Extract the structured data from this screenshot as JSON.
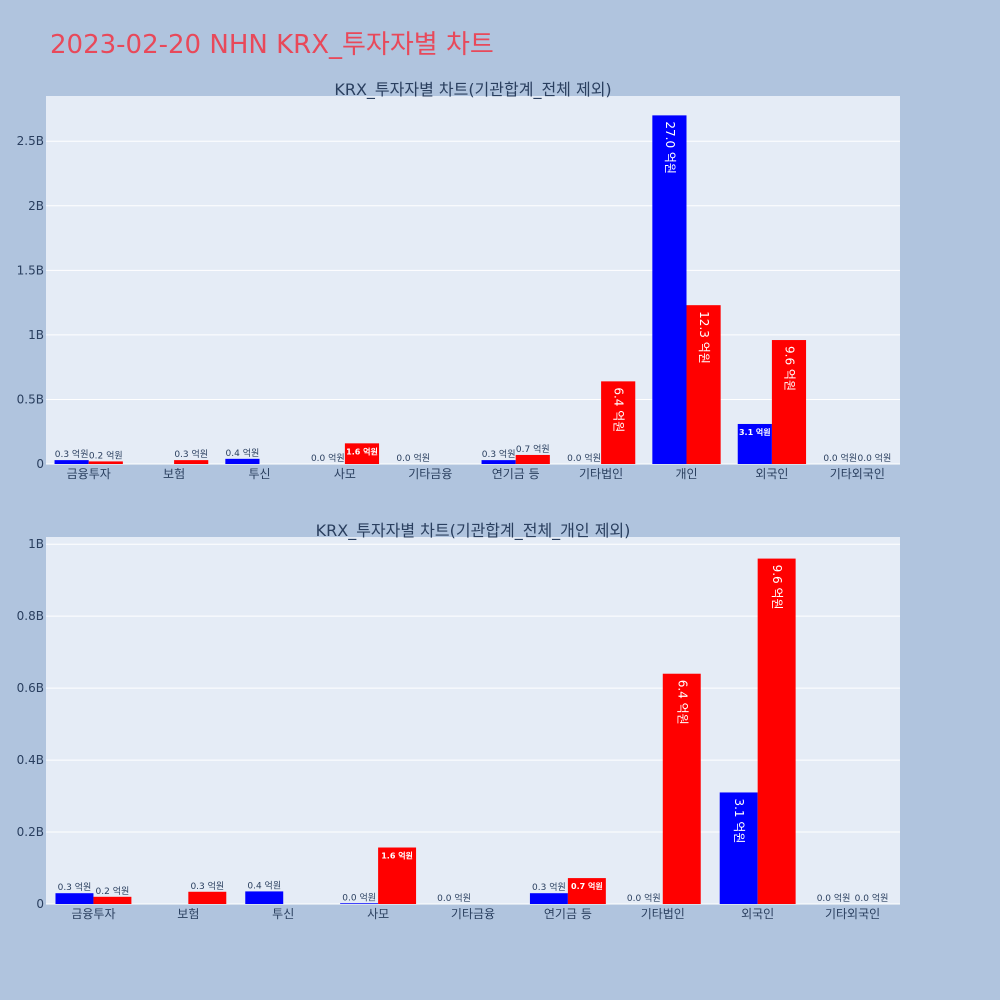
{
  "page_title": "2023-02-20 NHN KRX_투자자별 차트",
  "colors": {
    "sell": "#0000ff",
    "buy": "#ff0000",
    "title": "#e8495a",
    "plot_bg": "#e5ecf6",
    "page_bg": "#b0c4de"
  },
  "chart_data": [
    {
      "type": "bar",
      "title": "KRX_투자자별 차트(기관합계_전체 제외)",
      "categories": [
        "금융투자",
        "보험",
        "투신",
        "사모",
        "기타금융",
        "연기금 등",
        "기타법인",
        "개인",
        "외국인",
        "기타외국인"
      ],
      "series": [
        {
          "color": "#0000ff",
          "values": [
            0.03,
            0,
            0.04,
            0,
            0,
            0.03,
            0,
            2.7,
            0.31,
            0
          ],
          "labels": [
            "0.3 억원",
            "",
            "0.4 억원",
            "0.0 억원",
            "0.0 억원",
            "0.3 억원",
            "0.0 억원",
            "27.0 억원",
            "3.1 억원",
            "0.0 억원"
          ]
        },
        {
          "color": "#ff0000",
          "values": [
            0.02,
            0.03,
            0,
            0.16,
            0,
            0.07,
            0.64,
            1.23,
            0.96,
            0
          ],
          "labels": [
            "0.2 억원",
            "0.3 억원",
            "",
            "1.6 억원",
            "",
            "0.7 억원",
            "6.4 억원",
            "12.3 억원",
            "9.6 억원",
            "0.0 억원"
          ]
        }
      ],
      "ylim": [
        0,
        2.85
      ],
      "yticks": [
        0,
        0.5,
        1,
        1.5,
        2,
        2.5
      ],
      "yticklabels": [
        "0",
        "0.5B",
        "1B",
        "1.5B",
        "2B",
        "2.5B"
      ],
      "grid": true
    },
    {
      "type": "bar",
      "title": "KRX_투자자별 차트(기관합계_전체_개인 제외)",
      "categories": [
        "금융투자",
        "보험",
        "투신",
        "사모",
        "기타금융",
        "연기금 등",
        "기타법인",
        "외국인",
        "기타외국인"
      ],
      "series": [
        {
          "color": "#0000ff",
          "values": [
            0.03,
            0,
            0.035,
            0.002,
            0,
            0.03,
            0,
            0.31,
            0
          ],
          "labels": [
            "0.3 억원",
            "",
            "0.4 억원",
            "0.0 억원",
            "0.0 억원",
            "0.3 억원",
            "0.0 억원",
            "3.1 억원",
            "0.0 억원"
          ]
        },
        {
          "color": "#ff0000",
          "values": [
            0.02,
            0.034,
            0,
            0.157,
            0,
            0.072,
            0.64,
            0.96,
            0
          ],
          "labels": [
            "0.2 억원",
            "0.3 억원",
            "",
            "1.6 억원",
            "",
            "0.7 억원",
            "6.4 억원",
            "9.6 억원",
            "0.0 억원"
          ]
        }
      ],
      "ylim": [
        0,
        1.02
      ],
      "yticks": [
        0,
        0.2,
        0.4,
        0.6,
        0.8,
        1
      ],
      "yticklabels": [
        "0",
        "0.2B",
        "0.4B",
        "0.6B",
        "0.8B",
        "1B"
      ],
      "grid": true
    }
  ]
}
